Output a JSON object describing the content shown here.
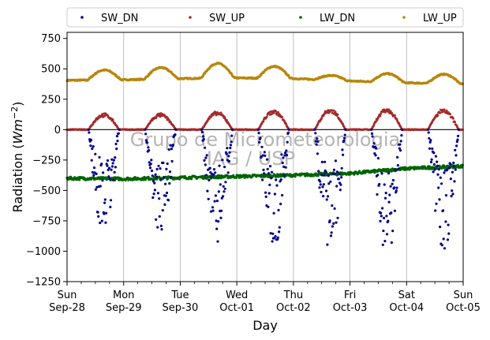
{
  "chart_data": {
    "type": "scatter",
    "title": "",
    "xlabel": "Day",
    "ylabel_main": "Radiation (",
    "ylabel_unit": "Wm",
    "ylabel_exp": "−2",
    "ylabel_close": ")",
    "ylim": [
      -1250,
      800
    ],
    "xlim": [
      0,
      7
    ],
    "grid": "vertical",
    "legend_placement": "top",
    "watermark": [
      "Grupo de Micrometeorologia",
      "IAG / USP"
    ],
    "yticks": [
      {
        "value": 750,
        "label": "750"
      },
      {
        "value": 500,
        "label": "500"
      },
      {
        "value": 250,
        "label": "250"
      },
      {
        "value": 0,
        "label": "0"
      },
      {
        "value": -250,
        "label": "−250"
      },
      {
        "value": -500,
        "label": "−500"
      },
      {
        "value": -750,
        "label": "−750"
      },
      {
        "value": -1000,
        "label": "−1000"
      },
      {
        "value": -1250,
        "label": "−1250"
      }
    ],
    "xticks": [
      {
        "value": 0,
        "day": "Sun",
        "date": "Sep-28"
      },
      {
        "value": 1,
        "day": "Mon",
        "date": "Sep-29"
      },
      {
        "value": 2,
        "day": "Tue",
        "date": "Sep-30"
      },
      {
        "value": 3,
        "day": "Wed",
        "date": "Oct-01"
      },
      {
        "value": 4,
        "day": "Thu",
        "date": "Oct-02"
      },
      {
        "value": 5,
        "day": "Fri",
        "date": "Oct-03"
      },
      {
        "value": 6,
        "day": "Sat",
        "date": "Oct-04"
      },
      {
        "value": 7,
        "day": "Sun",
        "date": "Oct-05"
      }
    ],
    "series": [
      {
        "name": "SW_DN",
        "color": "#00008b",
        "daily_min": [
          -830,
          -820,
          -920,
          -970,
          -1000,
          -1030,
          -1020
        ]
      },
      {
        "name": "SW_UP",
        "color": "#a52a2a",
        "daily_max": [
          130,
          130,
          145,
          160,
          170,
          170,
          165
        ]
      },
      {
        "name": "LW_DN",
        "color": "#006400",
        "day_values": [
          -400,
          -405,
          -395,
          -385,
          -375,
          -360,
          -320,
          -300
        ]
      },
      {
        "name": "LW_UP",
        "color": "#b8860b",
        "night_base": [
          405,
          410,
          420,
          425,
          420,
          400,
          385,
          375
        ],
        "daily_peak": [
          490,
          510,
          545,
          520,
          445,
          460,
          455
        ]
      }
    ]
  }
}
